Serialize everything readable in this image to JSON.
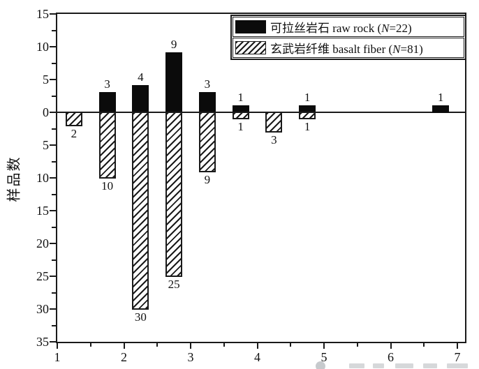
{
  "chart_data": {
    "type": "bar",
    "title": "",
    "xlabel": "",
    "ylabel": "样品数",
    "xlim": [
      1,
      7.15
    ],
    "ylim_display": "15 down to 35 (mirrored axis: positive up / negative down, labels unsigned)",
    "grid": false,
    "legend_position": "top-right",
    "series": [
      {
        "name": "可拉丝岩石 raw rock (N=22)",
        "style": "solid-black",
        "direction": "up",
        "total": 22
      },
      {
        "name": "玄武岩纤维 basalt fiber (N=81)",
        "style": "diagonal-hatch",
        "direction": "down",
        "total": 81
      }
    ],
    "groups": [
      {
        "x": 1.25,
        "raw_rock": null,
        "basalt_fiber": 2
      },
      {
        "x": 1.75,
        "raw_rock": 3,
        "basalt_fiber": 10
      },
      {
        "x": 2.25,
        "raw_rock": 4,
        "basalt_fiber": 30
      },
      {
        "x": 2.75,
        "raw_rock": 9,
        "basalt_fiber": 25
      },
      {
        "x": 3.25,
        "raw_rock": 3,
        "basalt_fiber": 9
      },
      {
        "x": 3.75,
        "raw_rock": 1,
        "basalt_fiber": 1
      },
      {
        "x": 4.25,
        "raw_rock": null,
        "basalt_fiber": 3
      },
      {
        "x": 4.75,
        "raw_rock": 1,
        "basalt_fiber": 1
      },
      {
        "x": 6.75,
        "raw_rock": 1,
        "basalt_fiber": null
      }
    ],
    "y_ticks": [
      {
        "value": 15,
        "label": "15"
      },
      {
        "value": 10,
        "label": "10"
      },
      {
        "value": 5,
        "label": "5"
      },
      {
        "value": 0,
        "label": "0"
      },
      {
        "value": -5,
        "label": "5"
      },
      {
        "value": -10,
        "label": "10"
      },
      {
        "value": -15,
        "label": "15"
      },
      {
        "value": -20,
        "label": "20"
      },
      {
        "value": -25,
        "label": "25"
      },
      {
        "value": -30,
        "label": "30"
      },
      {
        "value": -35,
        "label": "35"
      }
    ],
    "x_ticks": [
      {
        "value": 1,
        "label": "1"
      },
      {
        "value": 2,
        "label": "2"
      },
      {
        "value": 3,
        "label": "3"
      },
      {
        "value": 4,
        "label": "4"
      },
      {
        "value": 5,
        "label": "5"
      },
      {
        "value": 6,
        "label": "6"
      },
      {
        "value": 7,
        "label": "7"
      }
    ],
    "axis_color": "#1a1a1a",
    "bar_color": "#0b0b0b"
  },
  "legend": {
    "entries": [
      {
        "swatch": "solid-black-swatch",
        "prefix": "可拉丝岩石 raw rock (",
        "n": "N",
        "suffix": "=22)"
      },
      {
        "swatch": "hatched-swatch",
        "prefix": "玄武岩纤维 basalt fiber (",
        "n": "N",
        "suffix": "=81)"
      }
    ]
  },
  "watermark": {
    "icon": "gray-circle-icon",
    "note_fragments": 5
  }
}
